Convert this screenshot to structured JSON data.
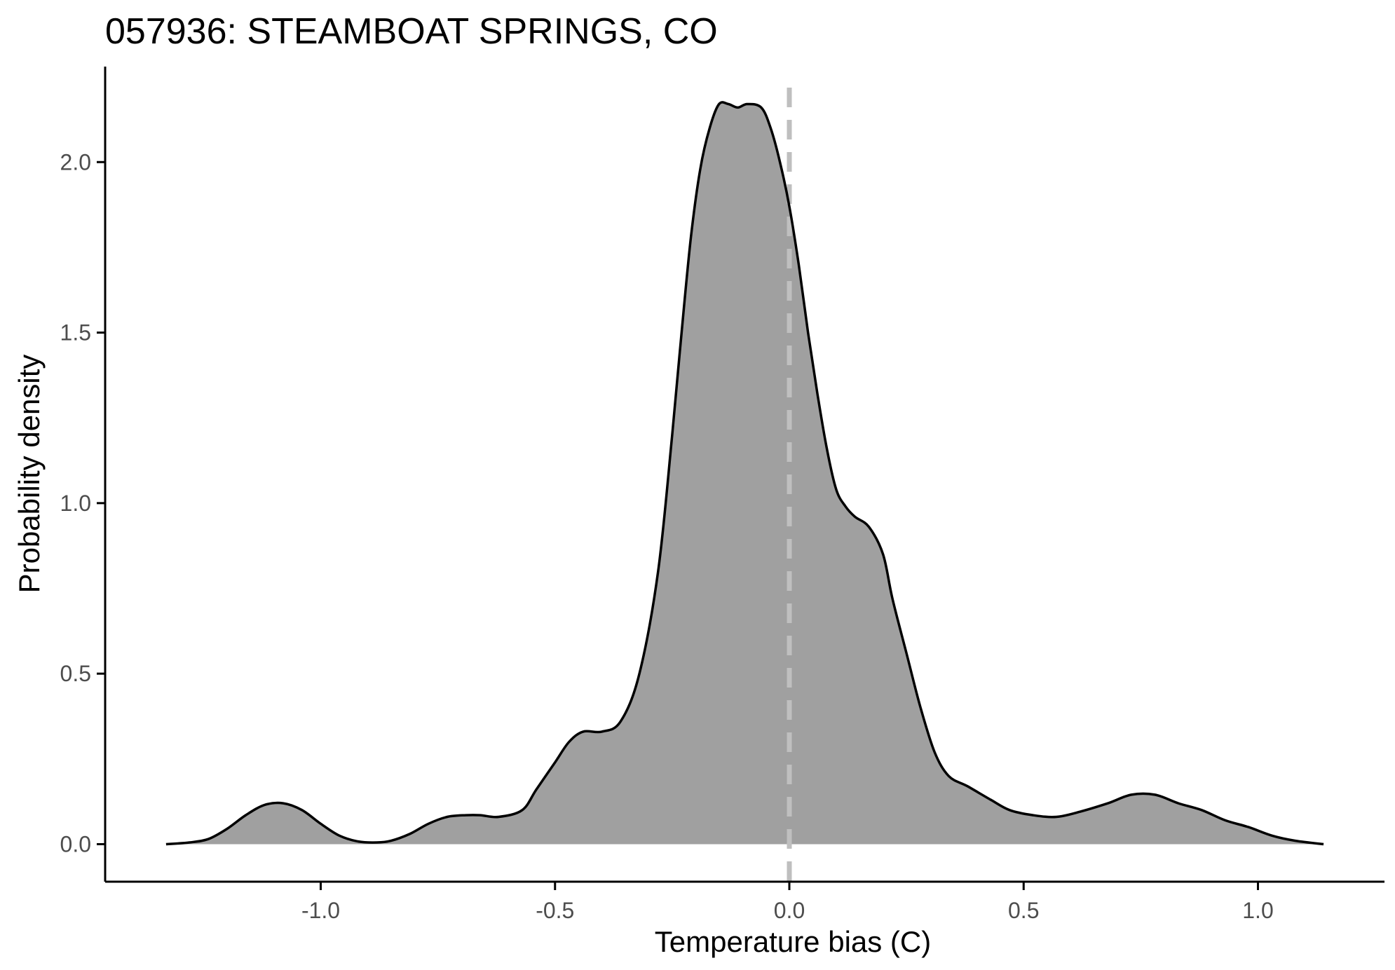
{
  "chart_data": {
    "type": "area",
    "title": "057936: STEAMBOAT SPRINGS, CO",
    "xlabel": "Temperature bias (C)",
    "ylabel": "Probability density",
    "xlim": [
      -1.46,
      1.27
    ],
    "ylim": [
      -0.11,
      2.28
    ],
    "x_ticks": [
      -1.0,
      -0.5,
      0.0,
      0.5,
      1.0
    ],
    "x_tick_labels": [
      "-1.0",
      "-0.5",
      "0.0",
      "0.5",
      "1.0"
    ],
    "y_ticks": [
      0.0,
      0.5,
      1.0,
      1.5,
      2.0
    ],
    "y_tick_labels": [
      "0.0",
      "0.5",
      "1.0",
      "1.5",
      "2.0"
    ],
    "grid": false,
    "reference_line": {
      "x": 0.0,
      "style": "dashed",
      "color": "#bfbfbf"
    },
    "fill_color": "#a0a0a0",
    "line_color": "#000000",
    "series": [
      {
        "x": [
          -1.33,
          -1.28,
          -1.24,
          -1.2,
          -1.16,
          -1.12,
          -1.08,
          -1.04,
          -1.0,
          -0.96,
          -0.92,
          -0.88,
          -0.85,
          -0.81,
          -0.77,
          -0.73,
          -0.69,
          -0.66,
          -0.62,
          -0.57,
          -0.54,
          -0.5,
          -0.47,
          -0.44,
          -0.4,
          -0.36,
          -0.32,
          -0.28,
          -0.25,
          -0.23,
          -0.21,
          -0.19,
          -0.17,
          -0.15,
          -0.13,
          -0.11,
          -0.09,
          -0.06,
          -0.04,
          -0.02,
          0.0,
          0.02,
          0.04,
          0.06,
          0.08,
          0.1,
          0.12,
          0.14,
          0.17,
          0.2,
          0.22,
          0.25,
          0.28,
          0.31,
          0.34,
          0.38,
          0.43,
          0.47,
          0.52,
          0.57,
          0.62,
          0.68,
          0.73,
          0.78,
          0.83,
          0.88,
          0.93,
          0.98,
          1.03,
          1.08,
          1.14
        ],
        "y": [
          0.0,
          0.005,
          0.015,
          0.045,
          0.085,
          0.115,
          0.12,
          0.1,
          0.06,
          0.025,
          0.008,
          0.005,
          0.01,
          0.03,
          0.06,
          0.08,
          0.085,
          0.085,
          0.08,
          0.1,
          0.16,
          0.24,
          0.3,
          0.33,
          0.33,
          0.36,
          0.5,
          0.8,
          1.2,
          1.5,
          1.78,
          1.98,
          2.1,
          2.17,
          2.17,
          2.16,
          2.17,
          2.16,
          2.1,
          2.0,
          1.87,
          1.7,
          1.5,
          1.32,
          1.16,
          1.04,
          0.99,
          0.96,
          0.93,
          0.85,
          0.72,
          0.56,
          0.4,
          0.27,
          0.2,
          0.17,
          0.13,
          0.1,
          0.085,
          0.08,
          0.095,
          0.12,
          0.145,
          0.145,
          0.12,
          0.1,
          0.07,
          0.05,
          0.025,
          0.01,
          0.0
        ]
      }
    ]
  }
}
